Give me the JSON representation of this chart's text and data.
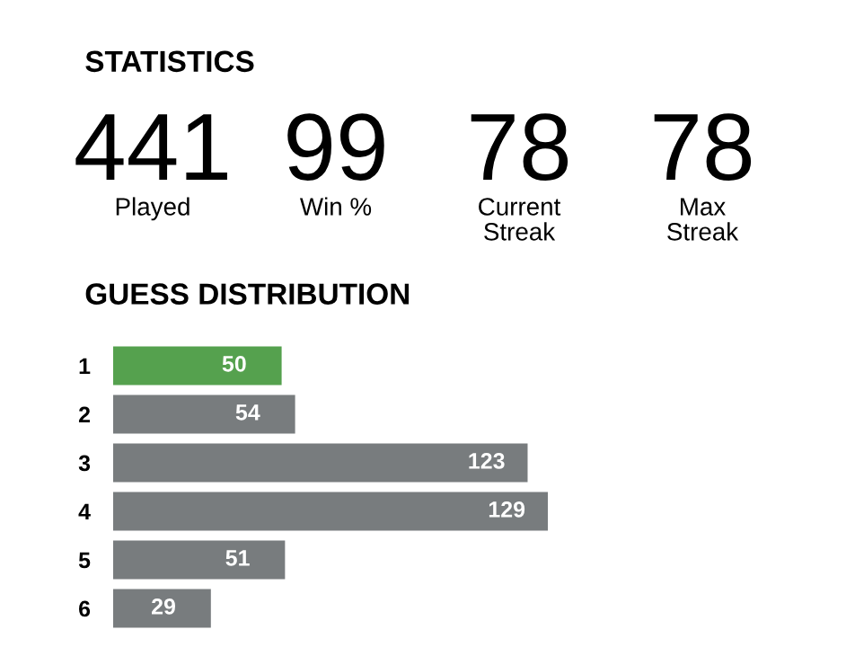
{
  "chart_data": [
    {
      "type": "other",
      "title": "STATISTICS",
      "categories": [
        "Played",
        "Win %",
        "Current Streak",
        "Max Streak"
      ],
      "values": [
        441,
        99,
        78,
        78
      ],
      "data_labels": true
    },
    {
      "type": "bar",
      "title": "GUESS DISTRIBUTION",
      "orientation": "horizontal",
      "categories": [
        "1",
        "2",
        "3",
        "4",
        "5",
        "6"
      ],
      "values": [
        50,
        54,
        123,
        129,
        51,
        29
      ],
      "colors": [
        "#55a14e",
        "#787c7e",
        "#787c7e",
        "#787c7e",
        "#787c7e",
        "#787c7e"
      ],
      "data_labels": true,
      "tick_labels": "y",
      "grid": false,
      "legend": false
    }
  ]
}
